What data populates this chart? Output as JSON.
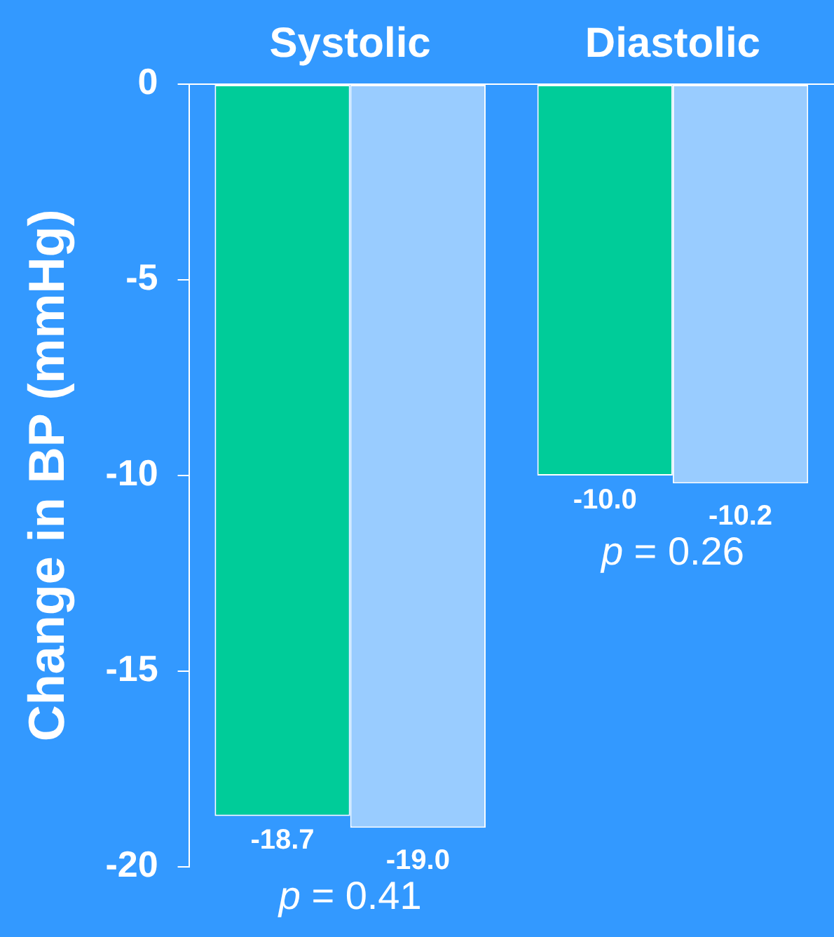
{
  "chart_data": {
    "type": "bar",
    "categories": [
      "Systolic",
      "Diastolic"
    ],
    "series": [
      {
        "color": "#00cc99",
        "values": [
          -18.7,
          -10.0
        ],
        "value_labels": [
          "-18.7",
          "-10.0"
        ]
      },
      {
        "color": "#99ccff",
        "values": [
          -19.0,
          -10.2
        ],
        "value_labels": [
          "-19.0",
          "-10.2"
        ]
      }
    ],
    "ylabel": "Change in BP (mmHg)",
    "ylim": [
      -20,
      0
    ],
    "yticks": [
      0,
      -5,
      -10,
      -15,
      -20
    ],
    "grid": false,
    "legend": false,
    "annotations": [
      "p = 0.41",
      "p = 0.26"
    ]
  }
}
